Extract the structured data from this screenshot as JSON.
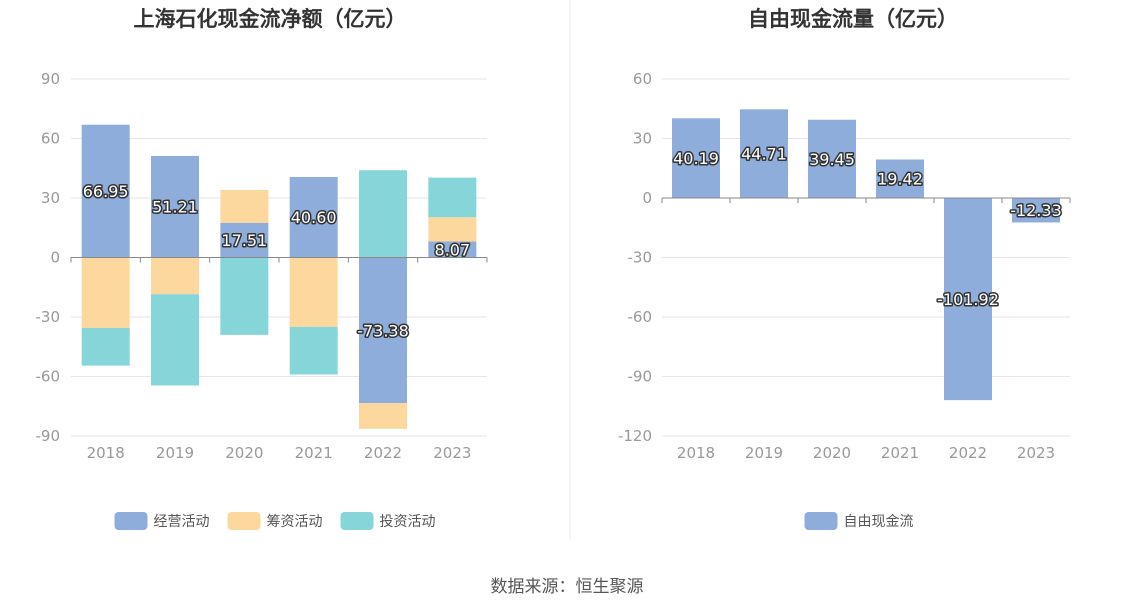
{
  "source_label": "数据来源：恒生聚源",
  "colors": {
    "operating": "#8eaddb",
    "financing": "#fdd89e",
    "investing": "#86d5d9",
    "free_cf": "#8eaddb",
    "grid": "#e6e6e6",
    "zero_axis": "#888888",
    "divider": "#eeeeee"
  },
  "chart_data": [
    {
      "type": "bar",
      "stacked": true,
      "title": "上海石化现金流净额（亿元）",
      "categories": [
        "2018",
        "2019",
        "2020",
        "2021",
        "2022",
        "2023"
      ],
      "ylim": [
        -90,
        90
      ],
      "yticks": [
        90,
        60,
        30,
        0,
        -30,
        -60,
        -90
      ],
      "grid": true,
      "legend": "bottom",
      "series": [
        {
          "name": "经营活动",
          "color_key": "operating",
          "values": [
            66.95,
            51.21,
            17.51,
            40.6,
            -73.38,
            8.07
          ],
          "labels": [
            "66.95",
            "51.21",
            "17.51",
            "40.60",
            "-73.38",
            "8.07"
          ]
        },
        {
          "name": "筹资活动",
          "color_key": "financing",
          "values": [
            -35.5,
            -18.5,
            16.5,
            -35,
            -13,
            12.2
          ],
          "labels": []
        },
        {
          "name": "投资活动",
          "color_key": "investing",
          "values": [
            -19,
            -46,
            -39,
            -24,
            44,
            20
          ]
        }
      ]
    },
    {
      "type": "bar",
      "title": "自由现金流量（亿元）",
      "categories": [
        "2018",
        "2019",
        "2020",
        "2021",
        "2022",
        "2023"
      ],
      "ylim": [
        -120,
        60
      ],
      "yticks": [
        60,
        30,
        0,
        -30,
        -60,
        -90,
        -120
      ],
      "grid": true,
      "legend": "bottom",
      "series": [
        {
          "name": "自由现金流",
          "color_key": "free_cf",
          "values": [
            40.19,
            44.71,
            39.45,
            19.42,
            -101.92,
            -12.33
          ],
          "labels": [
            "40.19",
            "44.71",
            "39.45",
            "19.42",
            "-101.92",
            "-12.33"
          ]
        }
      ]
    }
  ]
}
